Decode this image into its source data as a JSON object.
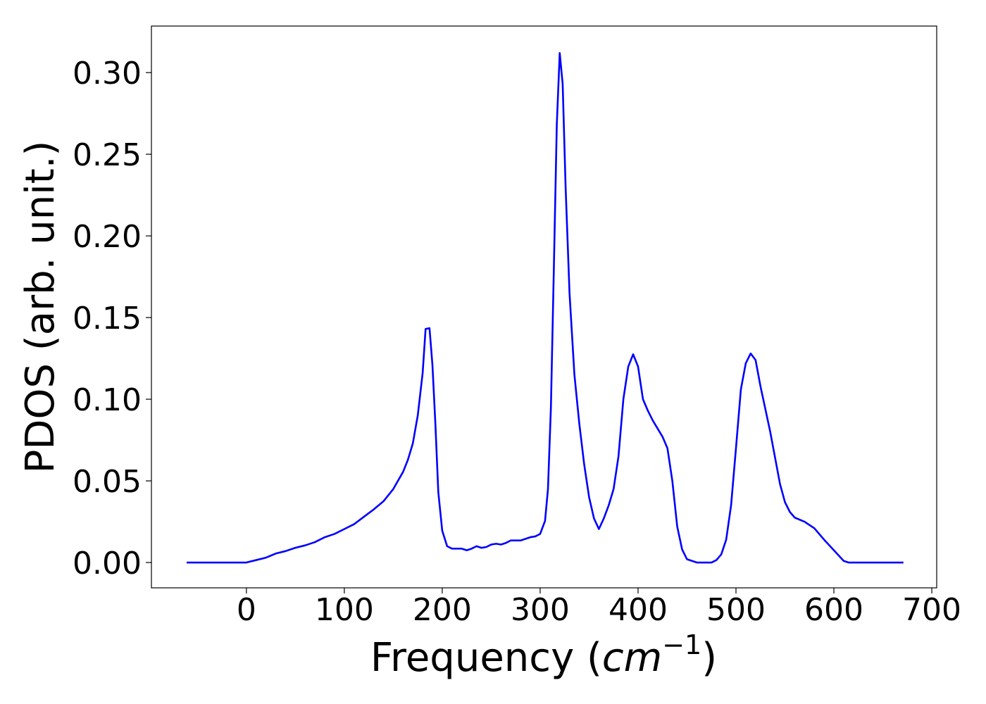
{
  "chart_data": {
    "type": "line",
    "title": "",
    "xlabel_text": "Frequency (",
    "xlabel_math_base": "cm",
    "xlabel_math_sup": "−1",
    "xlabel_close": ")",
    "ylabel": "PDOS (arb. unit.)",
    "xlim": [
      -97,
      705
    ],
    "ylim": [
      -0.0155,
      0.3285
    ],
    "x_ticks": [
      0,
      100,
      200,
      300,
      400,
      500,
      600,
      700
    ],
    "x_tick_labels": [
      "0",
      "100",
      "200",
      "300",
      "400",
      "500",
      "600",
      "700"
    ],
    "y_ticks": [
      0.0,
      0.05,
      0.1,
      0.15,
      0.2,
      0.25,
      0.3
    ],
    "y_tick_labels": [
      "0.00",
      "0.05",
      "0.10",
      "0.15",
      "0.20",
      "0.25",
      "0.30"
    ],
    "grid": false,
    "legend": "none",
    "series": [
      {
        "color": "#0000ff",
        "x": [
          -61,
          0,
          10,
          20,
          30,
          40,
          50,
          60,
          70,
          80,
          90,
          100,
          110,
          120,
          130,
          140,
          150,
          160,
          165,
          170,
          175,
          180,
          183,
          187,
          190,
          193,
          196,
          200,
          205,
          210,
          220,
          225,
          230,
          235,
          240,
          245,
          250,
          255,
          260,
          265,
          270,
          280,
          290,
          295,
          300,
          305,
          308,
          311,
          314,
          317,
          320,
          323,
          326,
          330,
          335,
          340,
          345,
          350,
          355,
          360,
          365,
          370,
          375,
          380,
          385,
          390,
          395,
          400,
          405,
          410,
          415,
          420,
          425,
          430,
          435,
          440,
          445,
          450,
          460,
          470,
          475,
          480,
          485,
          490,
          495,
          500,
          505,
          510,
          515,
          520,
          525,
          530,
          535,
          540,
          545,
          550,
          555,
          560,
          570,
          580,
          590,
          600,
          610,
          615,
          620,
          630,
          671
        ],
        "y": [
          0.0,
          0.0,
          0.0015,
          0.003,
          0.0055,
          0.007,
          0.009,
          0.0105,
          0.0125,
          0.0155,
          0.0175,
          0.0205,
          0.0235,
          0.028,
          0.0325,
          0.0375,
          0.045,
          0.0555,
          0.063,
          0.073,
          0.09,
          0.116,
          0.143,
          0.1435,
          0.121,
          0.085,
          0.043,
          0.0195,
          0.01,
          0.0085,
          0.0085,
          0.0075,
          0.0085,
          0.01,
          0.009,
          0.0095,
          0.011,
          0.0115,
          0.011,
          0.012,
          0.0135,
          0.0135,
          0.0155,
          0.016,
          0.0175,
          0.0255,
          0.045,
          0.095,
          0.18,
          0.268,
          0.312,
          0.293,
          0.23,
          0.165,
          0.115,
          0.085,
          0.06,
          0.04,
          0.027,
          0.0205,
          0.027,
          0.035,
          0.045,
          0.065,
          0.1,
          0.12,
          0.1275,
          0.12,
          0.1,
          0.093,
          0.087,
          0.082,
          0.077,
          0.07,
          0.05,
          0.022,
          0.008,
          0.002,
          0.0,
          0.0,
          0.0,
          0.0015,
          0.005,
          0.014,
          0.035,
          0.07,
          0.106,
          0.122,
          0.128,
          0.124,
          0.108,
          0.094,
          0.08,
          0.064,
          0.048,
          0.037,
          0.031,
          0.0275,
          0.025,
          0.021,
          0.014,
          0.0075,
          0.001,
          0.0,
          0.0,
          0.0,
          0.0
        ]
      }
    ]
  }
}
